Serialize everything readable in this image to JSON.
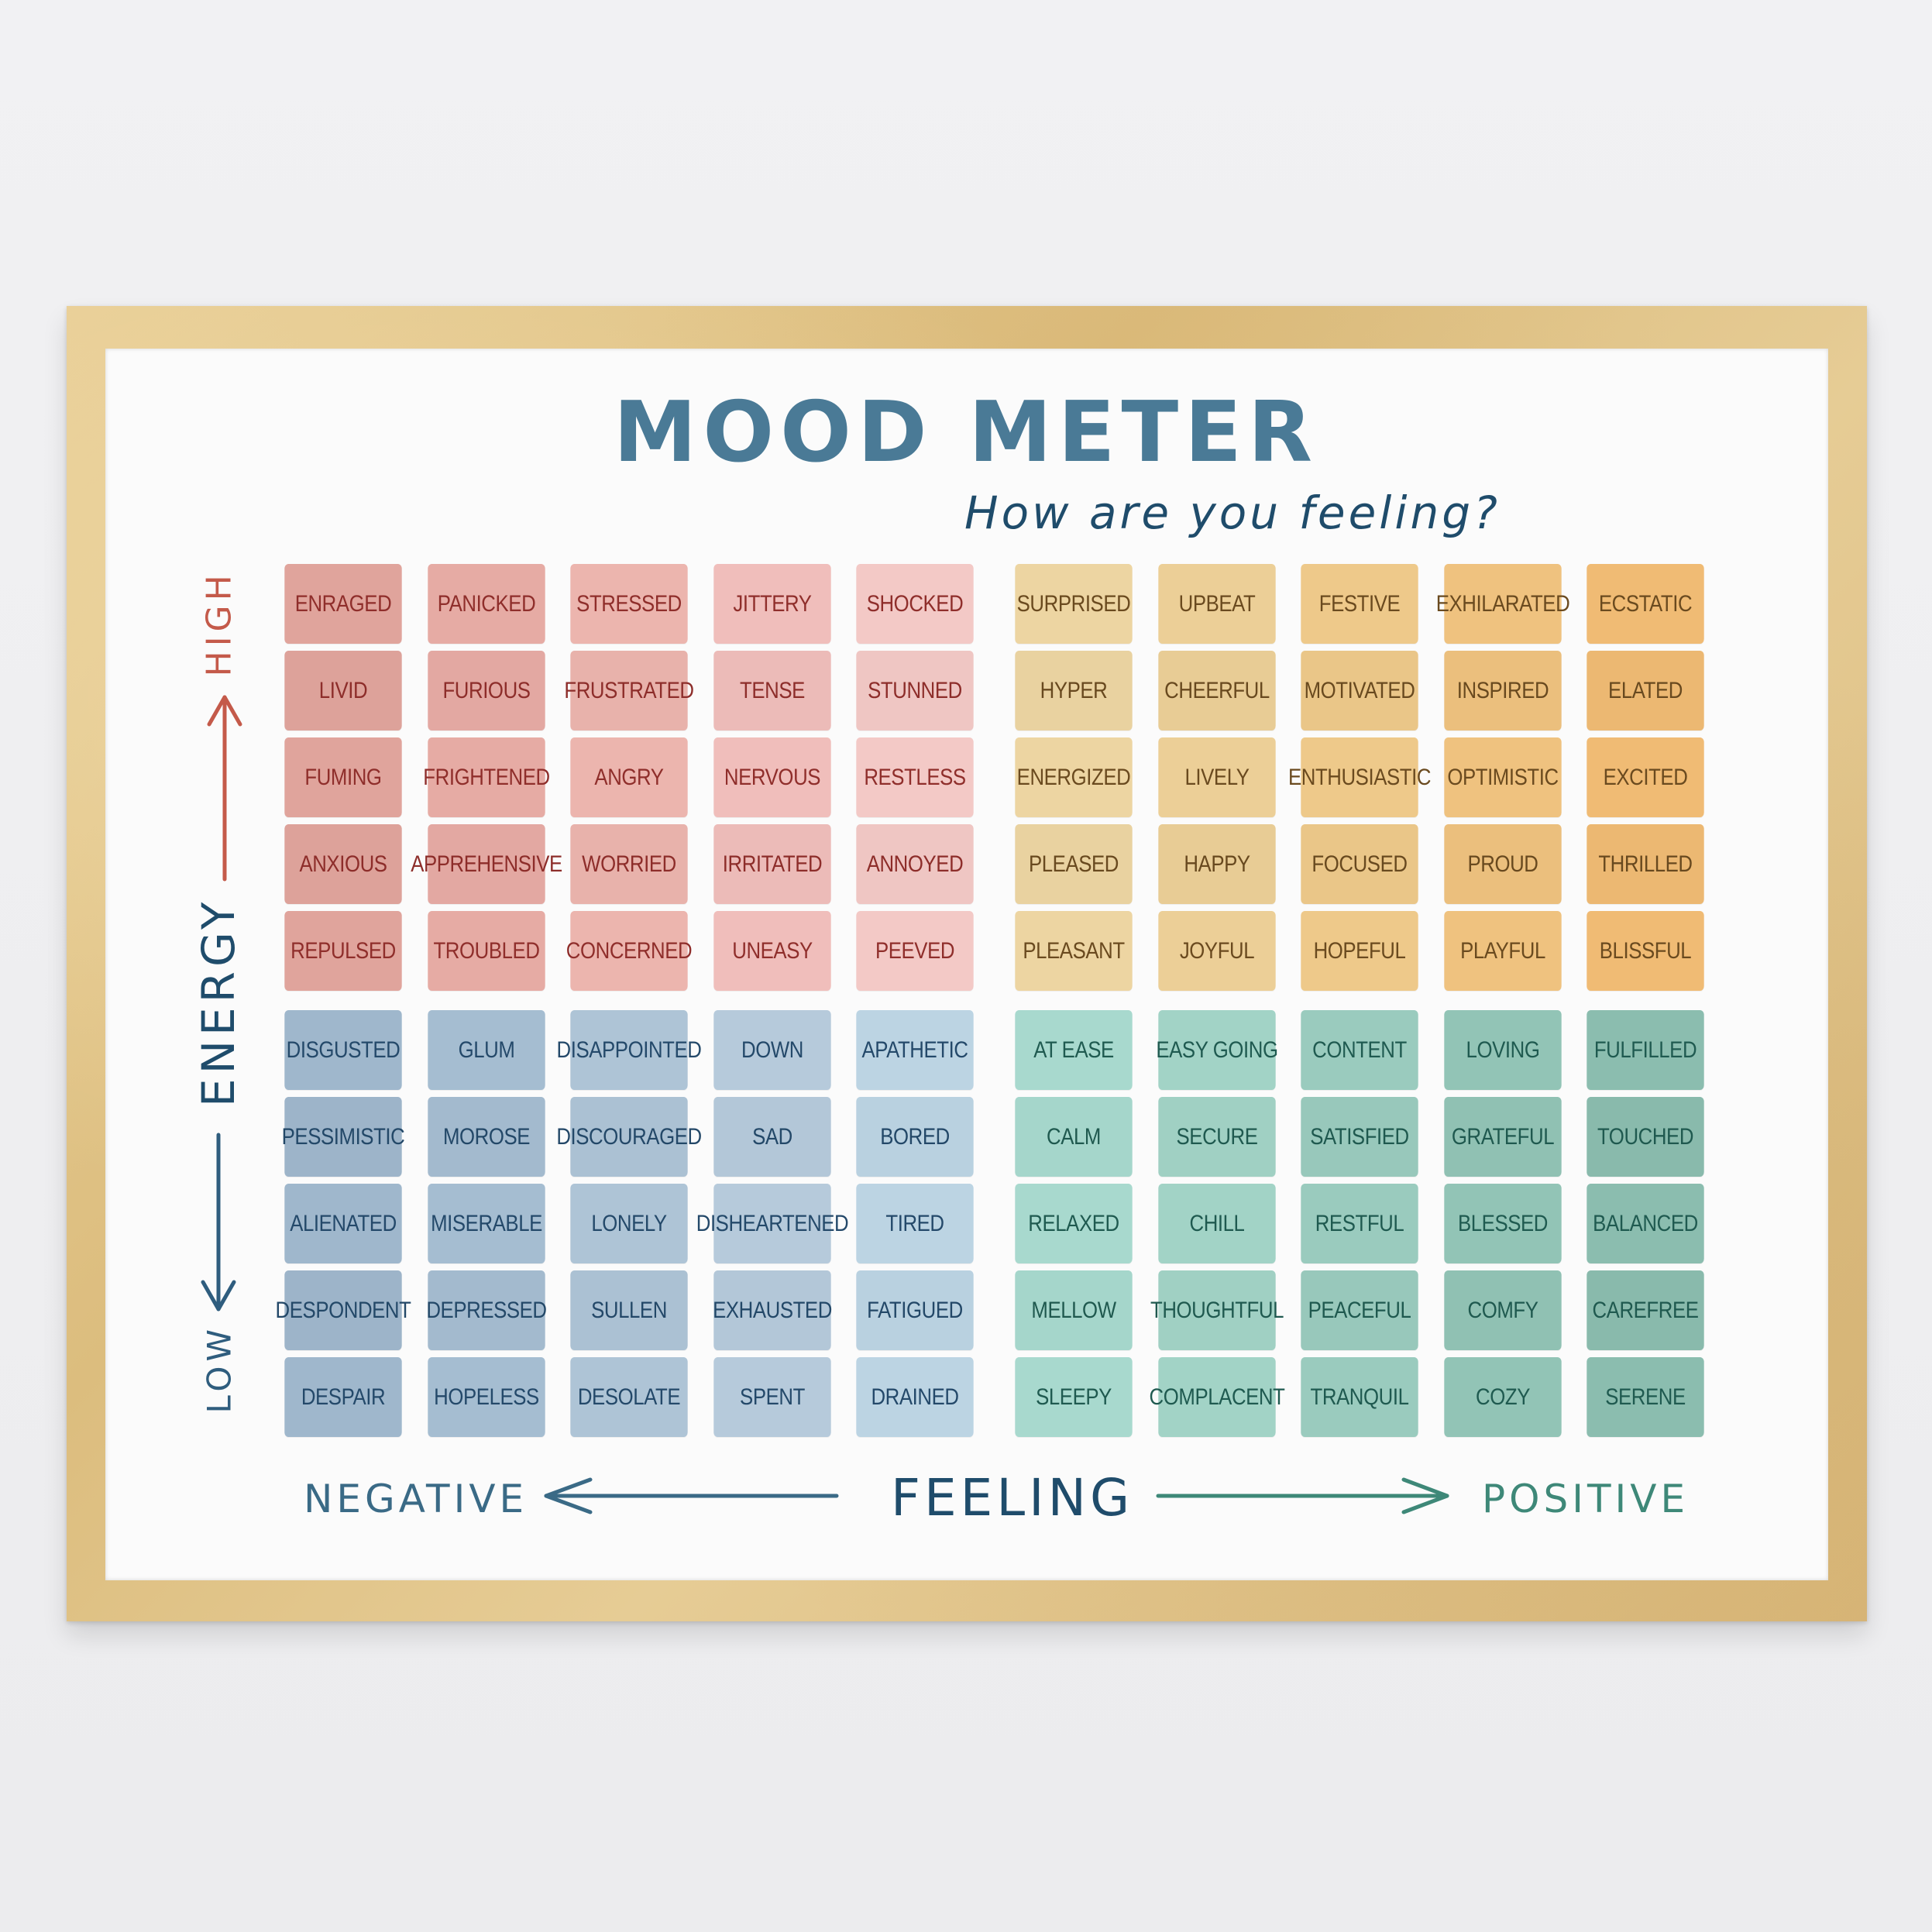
{
  "title": "MOOD METER",
  "subtitle": "How are you feeling?",
  "axes": {
    "energy": "ENERGY",
    "high": "HIGH",
    "low": "LOW",
    "feeling": "FEELING",
    "negative": "NEGATIVE",
    "positive": "POSITIVE"
  },
  "colors": {
    "title": "#4a7a96",
    "subtitle": "#1f4c6b",
    "high_arrow": "#c45a4a",
    "low_arrow": "#2f5d7e",
    "negative_arrow": "#3a6a86",
    "positive_arrow": "#3e8878",
    "red_gradient": [
      "#e0a49c",
      "#e6aba4",
      "#ecb5ae",
      "#f0bebb",
      "#f3c9c6"
    ],
    "yellow_gradient": [
      "#edd5a2",
      "#eccf97",
      "#eec98a",
      "#efc27f",
      "#f0bb74"
    ],
    "blue_gradient": [
      "#9fb7cc",
      "#a5bdd1",
      "#aec4d6",
      "#b6cadb",
      "#bcd4e3"
    ],
    "green_gradient": [
      "#a8d9ce",
      "#a2d3c6",
      "#9acbbe",
      "#92c4b6",
      "#8bbdaf"
    ]
  },
  "quadrants": {
    "top_left": [
      [
        "ENRAGED",
        "PANICKED",
        "STRESSED",
        "JITTERY",
        "SHOCKED"
      ],
      [
        "LIVID",
        "FURIOUS",
        "FRUSTRATED",
        "TENSE",
        "STUNNED"
      ],
      [
        "FUMING",
        "FRIGHTENED",
        "ANGRY",
        "NERVOUS",
        "RESTLESS"
      ],
      [
        "ANXIOUS",
        "APPREHENSIVE",
        "WORRIED",
        "IRRITATED",
        "ANNOYED"
      ],
      [
        "REPULSED",
        "TROUBLED",
        "CONCERNED",
        "UNEASY",
        "PEEVED"
      ]
    ],
    "top_right": [
      [
        "SURPRISED",
        "UPBEAT",
        "FESTIVE",
        "EXHILARATED",
        "ECSTATIC"
      ],
      [
        "HYPER",
        "CHEERFUL",
        "MOTIVATED",
        "INSPIRED",
        "ELATED"
      ],
      [
        "ENERGIZED",
        "LIVELY",
        "ENTHUSIASTIC",
        "OPTIMISTIC",
        "EXCITED"
      ],
      [
        "PLEASED",
        "HAPPY",
        "FOCUSED",
        "PROUD",
        "THRILLED"
      ],
      [
        "PLEASANT",
        "JOYFUL",
        "HOPEFUL",
        "PLAYFUL",
        "BLISSFUL"
      ]
    ],
    "bottom_left": [
      [
        "DISGUSTED",
        "GLUM",
        "DISAPPOINTED",
        "DOWN",
        "APATHETIC"
      ],
      [
        "PESSIMISTIC",
        "MOROSE",
        "DISCOURAGED",
        "SAD",
        "BORED"
      ],
      [
        "ALIENATED",
        "MISERABLE",
        "LONELY",
        "DISHEARTENED",
        "TIRED"
      ],
      [
        "DESPONDENT",
        "DEPRESSED",
        "SULLEN",
        "EXHAUSTED",
        "FATIGUED"
      ],
      [
        "DESPAIR",
        "HOPELESS",
        "DESOLATE",
        "SPENT",
        "DRAINED"
      ]
    ],
    "bottom_right": [
      [
        "AT EASE",
        "EASY GOING",
        "CONTENT",
        "LOVING",
        "FULFILLED"
      ],
      [
        "CALM",
        "SECURE",
        "SATISFIED",
        "GRATEFUL",
        "TOUCHED"
      ],
      [
        "RELAXED",
        "CHILL",
        "RESTFUL",
        "BLESSED",
        "BALANCED"
      ],
      [
        "MELLOW",
        "THOUGHTFUL",
        "PEACEFUL",
        "COMFY",
        "CAREFREE"
      ],
      [
        "SLEEPY",
        "COMPLACENT",
        "TRANQUIL",
        "COZY",
        "SERENE"
      ]
    ]
  }
}
